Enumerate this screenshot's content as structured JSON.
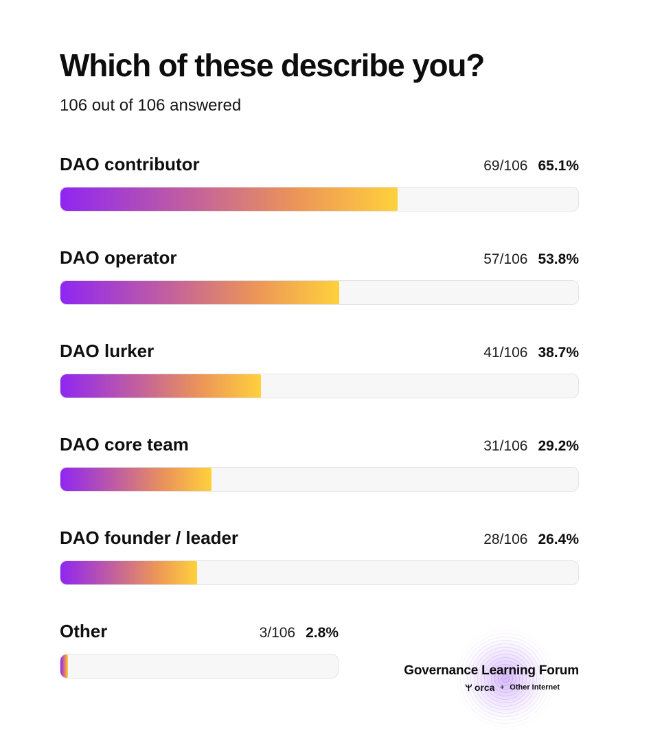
{
  "page": {
    "title": "Which of these describe you?",
    "subtitle": "106 out of 106 answered"
  },
  "chart_data": {
    "type": "bar",
    "title": "Which of these describe you?",
    "subtitle": "106 out of 106 answered",
    "total_answered": 106,
    "categories": [
      "DAO contributor",
      "DAO operator",
      "DAO lurker",
      "DAO core team",
      "DAO founder / leader",
      "Other"
    ],
    "values": [
      69,
      57,
      41,
      31,
      28,
      3
    ],
    "percentages": [
      65.1,
      53.8,
      38.7,
      29.2,
      26.4,
      2.8
    ],
    "count_labels": [
      "69/106",
      "57/106",
      "41/106",
      "31/106",
      "28/106",
      "3/106"
    ],
    "percent_labels": [
      "65.1%",
      "53.8%",
      "38.7%",
      "29.2%",
      "26.4%",
      "2.8%"
    ],
    "xlim": [
      0,
      100
    ],
    "grid": false,
    "legend": false,
    "orientation": "horizontal"
  },
  "rows": [
    {
      "label": "DAO contributor",
      "count": "69/106",
      "percent": "65.1%",
      "value": 65.1
    },
    {
      "label": "DAO operator",
      "count": "57/106",
      "percent": "53.8%",
      "value": 53.8
    },
    {
      "label": "DAO lurker",
      "count": "41/106",
      "percent": "38.7%",
      "value": 38.7
    },
    {
      "label": "DAO core team",
      "count": "31/106",
      "percent": "29.2%",
      "value": 29.2
    },
    {
      "label": "DAO founder / leader",
      "count": "28/106",
      "percent": "26.4%",
      "value": 26.4
    },
    {
      "label": "Other",
      "count": "3/106",
      "percent": "2.8%",
      "value": 2.8
    }
  ],
  "footer": {
    "brand": "Governance Learning Forum",
    "orca_label": "orca",
    "plus": "+",
    "other_internet_label": "Other Internet"
  },
  "colors": {
    "gradient_start": "#8f26f2",
    "gradient_mid1": "#c4629b",
    "gradient_mid2": "#ec9558",
    "gradient_end": "#ffd13c",
    "track": "#f7f7f8",
    "track_border": "#e3e3e6",
    "text": "#111111",
    "glow": "#ac6ef5"
  }
}
